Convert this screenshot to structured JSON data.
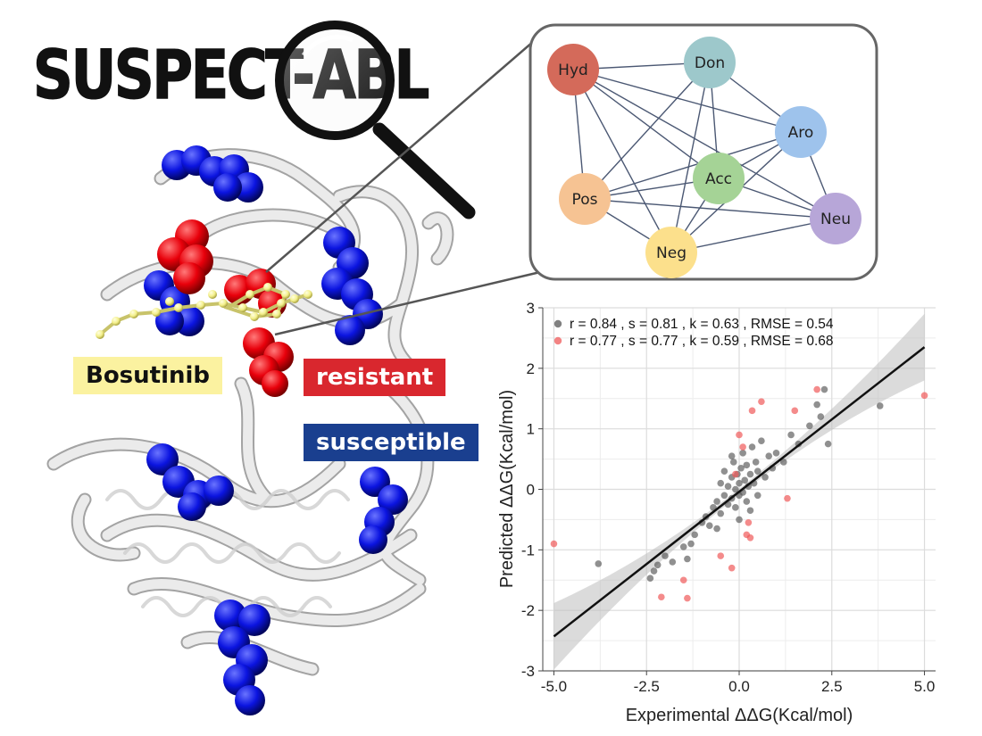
{
  "logo": {
    "text": "SUSPECT-ABL"
  },
  "labels": {
    "bosutinib": "Bosutinib",
    "resistant": "resistant",
    "susceptible": "susceptible"
  },
  "colors": {
    "resistant": "#d9272e",
    "susceptible": "#1a3f8f",
    "bosutinib": "#fbf2a0",
    "sphere_red": "#e8000b",
    "sphere_blue": "#0b14e0"
  },
  "network": {
    "nodes": [
      {
        "id": "Hyd",
        "label": "Hyd",
        "color": "#d46a5a"
      },
      {
        "id": "Don",
        "label": "Don",
        "color": "#9dc8cb"
      },
      {
        "id": "Aro",
        "label": "Aro",
        "color": "#9ec3ec"
      },
      {
        "id": "Acc",
        "label": "Acc",
        "color": "#a5d396"
      },
      {
        "id": "Pos",
        "label": "Pos",
        "color": "#f6c393"
      },
      {
        "id": "Neu",
        "label": "Neu",
        "color": "#b7a6d8"
      },
      {
        "id": "Neg",
        "label": "Neg",
        "color": "#fce08c"
      }
    ],
    "edges": [
      [
        "Hyd",
        "Don"
      ],
      [
        "Hyd",
        "Aro"
      ],
      [
        "Hyd",
        "Acc"
      ],
      [
        "Hyd",
        "Pos"
      ],
      [
        "Hyd",
        "Neu"
      ],
      [
        "Hyd",
        "Neg"
      ],
      [
        "Don",
        "Aro"
      ],
      [
        "Don",
        "Acc"
      ],
      [
        "Don",
        "Pos"
      ],
      [
        "Don",
        "Neg"
      ],
      [
        "Aro",
        "Acc"
      ],
      [
        "Aro",
        "Pos"
      ],
      [
        "Aro",
        "Neu"
      ],
      [
        "Aro",
        "Neg"
      ],
      [
        "Acc",
        "Pos"
      ],
      [
        "Acc",
        "Neu"
      ],
      [
        "Acc",
        "Neg"
      ],
      [
        "Pos",
        "Neu"
      ],
      [
        "Pos",
        "Neg"
      ],
      [
        "Neu",
        "Neg"
      ]
    ]
  },
  "chart_data": {
    "type": "scatter",
    "xlabel": "Experimental ΔΔG(Kcal/mol)",
    "ylabel": "Predicted ΔΔG(Kcal/mol)",
    "xlim": [
      -5.3,
      5.3
    ],
    "ylim": [
      -3,
      3
    ],
    "x_ticks": [
      "-5.0",
      "-2.5",
      "0.0",
      "2.5",
      "5.0"
    ],
    "y_ticks": [
      "-3",
      "-2",
      "-1",
      "0",
      "1",
      "2",
      "3"
    ],
    "grid": true,
    "legend_position": "top",
    "regression_line": {
      "x": [
        -5.0,
        5.0
      ],
      "y": [
        -2.43,
        2.35
      ]
    },
    "series": [
      {
        "stat_text": "r =  0.84 , s =  0.81 , k =  0.63 , RMSE =  0.54",
        "color": "#555555",
        "points": [
          [
            -3.8,
            -1.23
          ],
          [
            -2.4,
            -1.47
          ],
          [
            -2.3,
            -1.35
          ],
          [
            -2.2,
            -1.25
          ],
          [
            -2.0,
            -1.1
          ],
          [
            -1.8,
            -1.2
          ],
          [
            -1.5,
            -0.95
          ],
          [
            -1.4,
            -1.15
          ],
          [
            -1.3,
            -0.9
          ],
          [
            -1.2,
            -0.75
          ],
          [
            -1.0,
            -0.55
          ],
          [
            -0.9,
            -0.45
          ],
          [
            -0.8,
            -0.6
          ],
          [
            -0.7,
            -0.3
          ],
          [
            -0.6,
            -0.2
          ],
          [
            -0.5,
            -0.4
          ],
          [
            -0.5,
            0.1
          ],
          [
            -0.4,
            -0.1
          ],
          [
            -0.4,
            0.3
          ],
          [
            -0.3,
            -0.25
          ],
          [
            -0.3,
            0.05
          ],
          [
            -0.2,
            0.2
          ],
          [
            -0.2,
            -0.15
          ],
          [
            -0.15,
            0.45
          ],
          [
            -0.1,
            0.0
          ],
          [
            -0.1,
            -0.3
          ],
          [
            -0.05,
            0.25
          ],
          [
            0.0,
            0.1
          ],
          [
            0.0,
            -0.1
          ],
          [
            0.05,
            0.35
          ],
          [
            0.1,
            -0.05
          ],
          [
            0.1,
            0.6
          ],
          [
            0.15,
            0.15
          ],
          [
            0.2,
            -0.2
          ],
          [
            0.2,
            0.4
          ],
          [
            0.25,
            0.05
          ],
          [
            0.3,
            0.25
          ],
          [
            0.3,
            -0.35
          ],
          [
            0.35,
            0.7
          ],
          [
            0.4,
            0.1
          ],
          [
            0.45,
            0.45
          ],
          [
            0.5,
            0.3
          ],
          [
            0.6,
            0.8
          ],
          [
            0.7,
            0.2
          ],
          [
            0.8,
            0.55
          ],
          [
            0.9,
            0.35
          ],
          [
            1.0,
            0.6
          ],
          [
            1.2,
            0.45
          ],
          [
            1.4,
            0.9
          ],
          [
            1.6,
            0.75
          ],
          [
            1.9,
            1.05
          ],
          [
            2.1,
            1.4
          ],
          [
            2.2,
            1.2
          ],
          [
            2.3,
            1.65
          ],
          [
            2.4,
            0.75
          ],
          [
            3.8,
            1.38
          ],
          [
            0.0,
            -0.5
          ],
          [
            -0.6,
            -0.65
          ],
          [
            0.5,
            -0.1
          ],
          [
            -0.2,
            0.55
          ]
        ]
      },
      {
        "stat_text": "r =  0.77 , s =  0.77 , k =  0.59 , RMSE =  0.68",
        "color": "#ef5a5a",
        "points": [
          [
            -5.0,
            -0.9
          ],
          [
            -2.1,
            -1.78
          ],
          [
            -1.5,
            -1.5
          ],
          [
            -1.4,
            -1.8
          ],
          [
            -0.5,
            -1.1
          ],
          [
            -0.2,
            -1.3
          ],
          [
            0.0,
            0.9
          ],
          [
            0.1,
            0.7
          ],
          [
            0.2,
            -0.75
          ],
          [
            0.3,
            -0.8
          ],
          [
            0.35,
            1.3
          ],
          [
            0.6,
            1.45
          ],
          [
            1.3,
            -0.15
          ],
          [
            1.5,
            1.3
          ],
          [
            2.1,
            1.65
          ],
          [
            5.0,
            1.55
          ],
          [
            0.25,
            -0.55
          ],
          [
            -0.1,
            0.25
          ]
        ]
      }
    ]
  }
}
